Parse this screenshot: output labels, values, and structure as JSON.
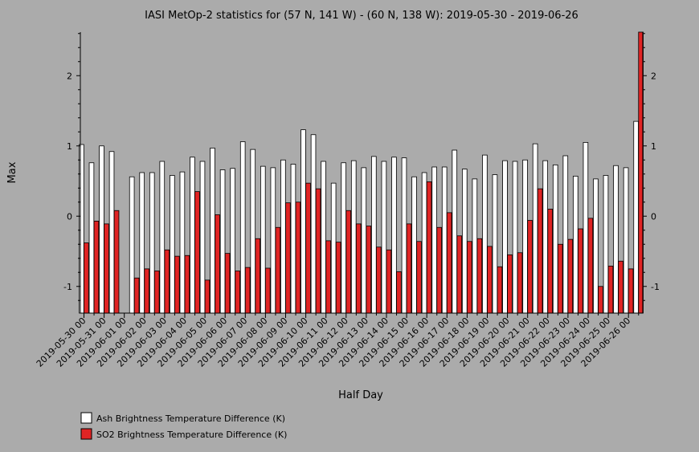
{
  "chart_data": {
    "type": "bar",
    "title": "IASI MetOp-2 statistics for (57 N, 141 W) - (60 N, 138 W): 2019-05-30 - 2019-06-26",
    "xlabel": "Half Day",
    "ylabel": "Max",
    "ylim": [
      -1.38,
      2.62
    ],
    "yticks": [
      -1,
      0,
      1,
      2
    ],
    "grid": false,
    "legend_position": "bottom-left",
    "x_tick_labels": [
      "2019-05-30 00",
      "2019-05-31 00",
      "2019-06-01 00",
      "2019-06-02 00",
      "2019-06-03 00",
      "2019-06-04 00",
      "2019-06-05 00",
      "2019-06-06 00",
      "2019-06-07 00",
      "2019-06-08 00",
      "2019-06-09 00",
      "2019-06-10 00",
      "2019-06-11 00",
      "2019-06-12 00",
      "2019-06-13 00",
      "2019-06-14 00",
      "2019-06-15 00",
      "2019-06-16 00",
      "2019-06-17 00",
      "2019-06-18 00",
      "2019-06-19 00",
      "2019-06-20 00",
      "2019-06-21 00",
      "2019-06-22 00",
      "2019-06-23 00",
      "2019-06-24 00",
      "2019-06-25 00",
      "2019-06-26 00"
    ],
    "series": [
      {
        "name": "Ash Brightness Temperature Difference (K)",
        "color": "#ffffff",
        "values": [
          1.02,
          0.76,
          1.0,
          0.92,
          null,
          0.56,
          0.62,
          0.62,
          0.78,
          0.58,
          0.63,
          0.84,
          0.78,
          0.97,
          0.66,
          0.68,
          1.06,
          0.95,
          0.71,
          0.69,
          0.8,
          0.74,
          1.23,
          1.16,
          0.78,
          0.47,
          0.76,
          0.79,
          0.69,
          0.85,
          0.78,
          0.84,
          0.83,
          0.56,
          0.62,
          0.7,
          0.7,
          0.94,
          0.67,
          0.53,
          0.87,
          0.59,
          0.79,
          0.78,
          0.8,
          1.03,
          0.79,
          0.73,
          0.86,
          0.57,
          1.05,
          0.53,
          0.58,
          0.72,
          0.69,
          1.35
        ]
      },
      {
        "name": "SO2 Brightness Temperature Difference (K)",
        "color": "#e02424",
        "values": [
          -0.38,
          -0.07,
          -0.11,
          0.08,
          null,
          -0.88,
          -0.75,
          -0.78,
          -0.48,
          -0.57,
          -0.56,
          0.35,
          -0.91,
          0.02,
          -0.53,
          -0.78,
          -0.73,
          -0.32,
          -0.74,
          -0.16,
          0.19,
          0.2,
          0.47,
          0.39,
          -0.35,
          -0.37,
          0.08,
          -0.11,
          -0.14,
          -0.44,
          -0.48,
          -0.79,
          -0.11,
          -0.36,
          0.49,
          -0.16,
          0.05,
          -0.28,
          -0.36,
          -0.32,
          -0.43,
          -0.72,
          -0.55,
          -0.52,
          -0.06,
          0.39,
          0.1,
          -0.4,
          -0.33,
          -0.18,
          -0.03,
          -1.0,
          -0.71,
          -0.64,
          -0.75,
          2.62
        ]
      }
    ]
  }
}
